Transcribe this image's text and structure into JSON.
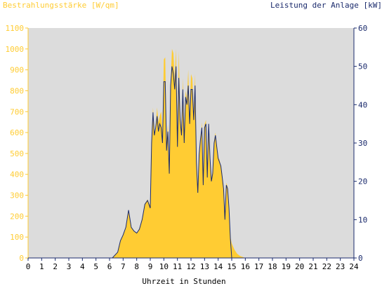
{
  "chart_data": {
    "type": "area",
    "left_axis_title": "Bestrahlungsstärke [W/qm]",
    "right_axis_title": "Leistung der Anlage [kW]",
    "xlabel": "Uhrzeit in Stunden",
    "x_ticks": [
      "0",
      "1",
      "2",
      "3",
      "4",
      "5",
      "6",
      "7",
      "8",
      "9",
      "10",
      "11",
      "12",
      "13",
      "14",
      "15",
      "16",
      "17",
      "18",
      "19",
      "20",
      "21",
      "22",
      "23",
      "24"
    ],
    "y_left_ticks": [
      "0",
      "100",
      "200",
      "300",
      "400",
      "500",
      "600",
      "700",
      "800",
      "900",
      "1000",
      "1100"
    ],
    "y_right_ticks": [
      "0",
      "10",
      "20",
      "30",
      "40",
      "50",
      "60"
    ],
    "xlim": [
      0,
      24
    ],
    "ylim_left": [
      0,
      1100
    ],
    "ylim_right": [
      0,
      60
    ],
    "grid": false,
    "colors": {
      "plot_bg": "#dcdcdc",
      "irradiance_fill": "#ffcc33",
      "left_axis": "#ffcc33",
      "right_axis": "#1a2a6c",
      "power_line": "#1a2a6c",
      "left_title": "#ffcc33",
      "right_title": "#1a2a6c"
    },
    "series": [
      {
        "name": "Bestrahlungsstärke",
        "axis": "left",
        "x": [
          0,
          6.2,
          6.6,
          6.8,
          7.0,
          7.2,
          7.4,
          7.6,
          7.8,
          8.0,
          8.2,
          8.4,
          8.6,
          8.8,
          9.0,
          9.1,
          9.2,
          9.3,
          9.4,
          9.5,
          9.6,
          9.7,
          9.8,
          9.9,
          10.0,
          10.1,
          10.2,
          10.3,
          10.4,
          10.5,
          10.6,
          10.7,
          10.8,
          10.9,
          11.0,
          11.1,
          11.2,
          11.3,
          11.4,
          11.5,
          11.6,
          11.7,
          11.8,
          11.9,
          12.0,
          12.1,
          12.2,
          12.3,
          12.4,
          12.5,
          12.6,
          12.7,
          12.8,
          12.9,
          13.0,
          13.1,
          13.2,
          13.3,
          13.4,
          13.5,
          13.6,
          13.7,
          13.8,
          13.9,
          14.0,
          14.1,
          14.2,
          14.3,
          14.4,
          14.5,
          14.6,
          14.7,
          14.8,
          14.9,
          15.0,
          15.2,
          15.4,
          15.6,
          15.8,
          16.0,
          16.1,
          16.2,
          16.3,
          16.4,
          16.5,
          16.6,
          16.7,
          16.8,
          16.9,
          17.0,
          17.2,
          17.4,
          17.6,
          17.8,
          18.0,
          18.2,
          18.4,
          18.6,
          18.8,
          19.0,
          19.2,
          24
        ],
        "y": [
          0,
          0,
          30,
          80,
          110,
          140,
          230,
          150,
          130,
          120,
          140,
          190,
          260,
          280,
          250,
          550,
          720,
          600,
          620,
          720,
          650,
          680,
          700,
          600,
          950,
          960,
          560,
          640,
          400,
          840,
          1000,
          980,
          850,
          1000,
          560,
          990,
          700,
          600,
          860,
          550,
          800,
          760,
          900,
          680,
          880,
          860,
          690,
          880,
          450,
          300,
          500,
          560,
          650,
          350,
          640,
          660,
          380,
          640,
          480,
          380,
          420,
          560,
          600,
          540,
          480,
          470,
          440,
          400,
          330,
          200,
          360,
          340,
          250,
          100,
          70,
          40,
          20,
          10,
          5,
          0,
          0,
          0,
          0,
          0,
          0,
          0,
          0,
          0,
          0,
          0,
          0,
          0,
          0,
          0,
          0,
          0,
          0,
          0,
          0,
          0,
          0,
          0
        ]
      },
      {
        "name": "Leistung der Anlage",
        "axis": "right",
        "x": [
          0,
          6.2,
          6.6,
          6.8,
          7.0,
          7.2,
          7.4,
          7.6,
          7.8,
          8.0,
          8.2,
          8.4,
          8.6,
          8.8,
          9.0,
          9.1,
          9.2,
          9.3,
          9.4,
          9.5,
          9.6,
          9.7,
          9.8,
          9.9,
          10.0,
          10.1,
          10.2,
          10.3,
          10.4,
          10.5,
          10.6,
          10.7,
          10.8,
          10.9,
          11.0,
          11.1,
          11.2,
          11.3,
          11.4,
          11.5,
          11.6,
          11.7,
          11.8,
          11.9,
          12.0,
          12.1,
          12.2,
          12.3,
          12.4,
          12.5,
          12.6,
          12.7,
          12.8,
          12.9,
          13.0,
          13.1,
          13.2,
          13.3,
          13.4,
          13.5,
          13.6,
          13.7,
          13.8,
          13.9,
          14.0,
          14.1,
          14.2,
          14.3,
          14.4,
          14.5,
          14.6,
          14.7,
          14.8,
          14.9,
          15.0,
          15.2,
          15.4,
          15.6,
          15.8,
          16.0,
          16.1,
          16.2,
          16.3,
          16.4,
          16.5,
          16.6,
          16.7,
          16.8,
          16.9,
          17.0,
          17.2,
          17.4,
          17.6,
          17.8,
          18.0,
          18.2,
          18.4,
          18.6,
          18.8,
          19.0,
          19.2,
          24
        ],
        "y": [
          0,
          0,
          1.5,
          4.5,
          6,
          8,
          12.5,
          8,
          7,
          6.5,
          7.5,
          10,
          14,
          15,
          13,
          30,
          38,
          32,
          34,
          37,
          33,
          35,
          34,
          30,
          46,
          46,
          28,
          33,
          22,
          45,
          50,
          48,
          44,
          50,
          29,
          47,
          36,
          32,
          44,
          30,
          42,
          40,
          45,
          35,
          44,
          44,
          36,
          45,
          25,
          17,
          27,
          31,
          34,
          19,
          34,
          35,
          21,
          35,
          26,
          20,
          22,
          30,
          32,
          29,
          26,
          25,
          24,
          21,
          18,
          10,
          19,
          18,
          13,
          5,
          0,
          0,
          0,
          0,
          0,
          0,
          0,
          0,
          0,
          0,
          0,
          0,
          0,
          0,
          0,
          0,
          0,
          0,
          0,
          0,
          0,
          0,
          0,
          0,
          0,
          0,
          0,
          0
        ]
      }
    ]
  }
}
